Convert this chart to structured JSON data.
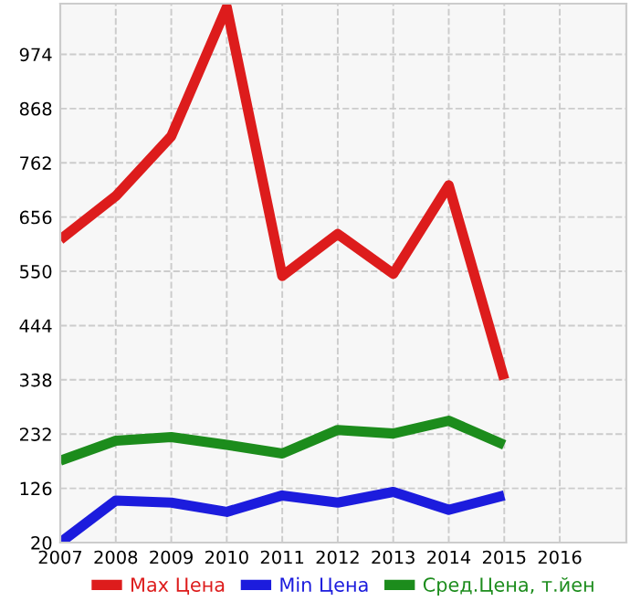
{
  "chart_data": {
    "type": "line",
    "x": [
      2007,
      2008,
      2009,
      2010,
      2011,
      2012,
      2013,
      2014,
      2015
    ],
    "series": [
      {
        "name": "Max Цена",
        "color": "#dd1c1c",
        "values": [
          612,
          697,
          814,
          1066,
          541,
          623,
          545,
          718,
          339
        ]
      },
      {
        "name": "Min Цена",
        "color": "#1c1cdd",
        "values": [
          20,
          102,
          98,
          80,
          112,
          98,
          119,
          84,
          112
        ]
      },
      {
        "name": "Сред.Цена, т.йен",
        "color": "#1c8c1c",
        "values": [
          180,
          219,
          226,
          211,
          194,
          240,
          233,
          258,
          211
        ]
      }
    ],
    "xlim": [
      2007,
      2017.2
    ],
    "xticks": [
      2007,
      2008,
      2009,
      2010,
      2011,
      2012,
      2013,
      2014,
      2015,
      2016
    ],
    "ylim": [
      20,
      1073
    ],
    "yticks": [
      20,
      126,
      232,
      338,
      444,
      550,
      656,
      762,
      868,
      974
    ],
    "grid": true,
    "legend": "bottom",
    "marker": "none",
    "line_style": "solid"
  }
}
